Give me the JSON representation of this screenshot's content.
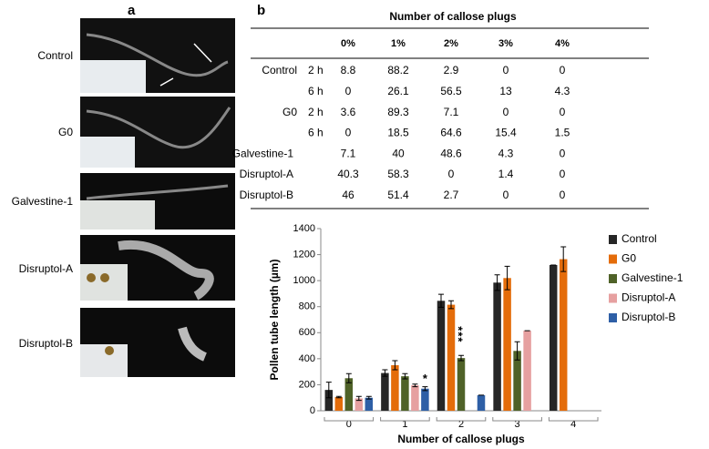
{
  "panel_a": {
    "label": "a",
    "images": [
      "Control",
      "G0",
      "Galvestine-1",
      "Disruptol-A",
      "Disruptol-B"
    ]
  },
  "panel_b": {
    "label": "b",
    "table": {
      "title": "Number of callose plugs",
      "columns": [
        "0%",
        "1%",
        "2%",
        "3%",
        "4%"
      ],
      "rows": [
        {
          "label": "Control",
          "time": "2 h",
          "values": [
            8.8,
            88.2,
            2.9,
            0,
            0
          ]
        },
        {
          "time": "6 h",
          "values": [
            0,
            26.1,
            56.5,
            13,
            4.3
          ]
        },
        {
          "label": "G0",
          "time": "2 h",
          "values": [
            3.6,
            89.3,
            7.1,
            0,
            0
          ]
        },
        {
          "time": "6 h",
          "values": [
            0,
            18.5,
            64.6,
            15.4,
            1.5
          ]
        },
        {
          "label": "Galvestine-1",
          "values": [
            7.1,
            40,
            48.6,
            4.3,
            0
          ]
        },
        {
          "label": "Disruptol-A",
          "values": [
            40.3,
            58.3,
            0,
            1.4,
            0
          ]
        },
        {
          "label": "Disruptol-B",
          "values": [
            46,
            51.4,
            2.7,
            0,
            0
          ]
        }
      ]
    }
  },
  "chart_data": {
    "type": "bar",
    "x_label": "Number of callose plugs",
    "y_label": "Pollen tube length (µm)",
    "categories": [
      "0",
      "1",
      "2",
      "3",
      "4"
    ],
    "series": [
      {
        "name": "Control",
        "color": "#262626",
        "values": [
          160,
          290,
          845,
          985,
          1120
        ],
        "errors": [
          60,
          25,
          50,
          60,
          0
        ]
      },
      {
        "name": "G0",
        "color": "#e46c0a",
        "values": [
          105,
          350,
          815,
          1020,
          1165
        ],
        "errors": [
          5,
          35,
          30,
          90,
          95
        ]
      },
      {
        "name": "Galvestine-1",
        "color": "#4f6228",
        "values": [
          250,
          265,
          405,
          460,
          null
        ],
        "errors": [
          35,
          20,
          20,
          70,
          null
        ]
      },
      {
        "name": "Disruptol-A",
        "color": "#e6a0a0",
        "values": [
          95,
          195,
          null,
          615,
          null
        ],
        "errors": [
          15,
          10,
          null,
          0,
          null
        ]
      },
      {
        "name": "Disruptol-B",
        "color": "#2e5fa6",
        "values": [
          100,
          170,
          120,
          null,
          null
        ],
        "errors": [
          10,
          15,
          0,
          null,
          null
        ]
      }
    ],
    "annotations": [
      "***",
      "*"
    ],
    "ylim": [
      0,
      1400
    ],
    "yticks": [
      0,
      200,
      400,
      600,
      800,
      1000,
      1200,
      1400
    ],
    "legend": "right"
  }
}
